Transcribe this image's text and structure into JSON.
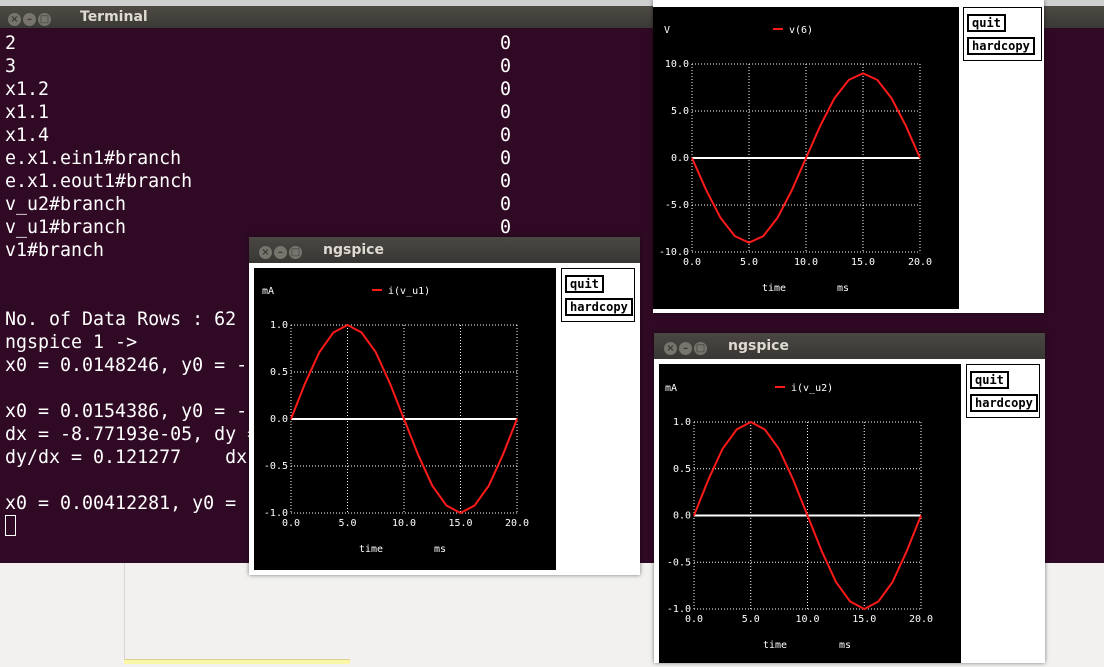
{
  "terminal": {
    "title": "Terminal",
    "rows": [
      {
        "name": "2",
        "value": "0"
      },
      {
        "name": "3",
        "value": "0"
      },
      {
        "name": "x1.2",
        "value": "0"
      },
      {
        "name": "x1.1",
        "value": "0"
      },
      {
        "name": "x1.4",
        "value": "0"
      },
      {
        "name": "e.x1.ein1#branch",
        "value": "0"
      },
      {
        "name": "e.x1.eout1#branch",
        "value": "0"
      },
      {
        "name": "v_u2#branch",
        "value": "0"
      },
      {
        "name": "v_u1#branch",
        "value": "0"
      },
      {
        "name": "v1#branch",
        "value": ""
      }
    ],
    "lines": [
      "",
      "",
      "No. of Data Rows : 62",
      "ngspice 1 ->",
      "x0 = 0.0148246, y0 = -",
      "",
      "x0 = 0.0154386, y0 = -",
      "dx = -8.77193e-05, dy =",
      "dy/dx = 0.121277    dx",
      "",
      "x0 = 0.00412281, y0 ="
    ]
  },
  "colors": {
    "terminal_bg": "#300a24",
    "trace": "#ff1a1a",
    "plot_bg": "#000000"
  },
  "windows": [
    {
      "id": "v6",
      "title": "",
      "unit": "V",
      "legend": "v(6)",
      "buttons": {
        "quit": "quit",
        "hardcopy": "hardcopy"
      },
      "xlabel": "time",
      "xunit": "ms",
      "chart_data": {
        "type": "line",
        "x": [
          0.0,
          1.25,
          2.5,
          3.75,
          5.0,
          6.25,
          7.5,
          8.75,
          10.0,
          11.25,
          12.5,
          13.75,
          15.0,
          16.25,
          17.5,
          18.75,
          20.0
        ],
        "series": [
          {
            "name": "v(6)",
            "values": [
              0.0,
              -3.44,
              -6.36,
              -8.31,
              -9.0,
              -8.31,
              -6.36,
              -3.44,
              0.0,
              3.44,
              6.36,
              8.31,
              9.0,
              8.31,
              6.36,
              3.44,
              0.0
            ]
          }
        ],
        "xticks": [
          "0.0",
          "5.0",
          "10.0",
          "15.0",
          "20.0"
        ],
        "yticks": [
          "10.0",
          "5.0",
          "0.0",
          "-5.0",
          "-10.0"
        ],
        "xlim": [
          0,
          20
        ],
        "ylim": [
          -10,
          10
        ],
        "xlabel": "time",
        "xunit": "ms",
        "ylabel": "V",
        "grid": true,
        "legend": "top"
      }
    },
    {
      "id": "vu1",
      "title": "ngspice",
      "unit": "mA",
      "legend": "i(v_u1)",
      "buttons": {
        "quit": "quit",
        "hardcopy": "hardcopy"
      },
      "xlabel": "time",
      "xunit": "ms",
      "chart_data": {
        "type": "line",
        "x": [
          0.0,
          1.25,
          2.5,
          3.75,
          5.0,
          6.25,
          7.5,
          8.75,
          10.0,
          11.25,
          12.5,
          13.75,
          15.0,
          16.25,
          17.5,
          18.75,
          20.0
        ],
        "series": [
          {
            "name": "i(v_u1)",
            "values": [
              0.0,
              0.38,
              0.71,
              0.92,
              1.0,
              0.92,
              0.71,
              0.38,
              0.0,
              -0.38,
              -0.71,
              -0.92,
              -1.0,
              -0.92,
              -0.71,
              -0.38,
              0.0
            ]
          }
        ],
        "xticks": [
          "0.0",
          "5.0",
          "10.0",
          "15.0",
          "20.0"
        ],
        "yticks": [
          "1.0",
          "0.5",
          "0.0",
          "-0.5",
          "-1.0"
        ],
        "xlim": [
          0,
          20
        ],
        "ylim": [
          -1,
          1
        ],
        "xlabel": "time",
        "xunit": "ms",
        "ylabel": "mA",
        "grid": true,
        "legend": "top"
      }
    },
    {
      "id": "vu2",
      "title": "ngspice",
      "unit": "mA",
      "legend": "i(v_u2)",
      "buttons": {
        "quit": "quit",
        "hardcopy": "hardcopy"
      },
      "xlabel": "time",
      "xunit": "ms",
      "chart_data": {
        "type": "line",
        "x": [
          0.0,
          1.25,
          2.5,
          3.75,
          5.0,
          6.25,
          7.5,
          8.75,
          10.0,
          11.25,
          12.5,
          13.75,
          15.0,
          16.25,
          17.5,
          18.75,
          20.0
        ],
        "series": [
          {
            "name": "i(v_u2)",
            "values": [
              0.0,
              0.38,
              0.71,
              0.92,
              1.0,
              0.92,
              0.71,
              0.38,
              0.0,
              -0.38,
              -0.71,
              -0.92,
              -1.0,
              -0.92,
              -0.71,
              -0.38,
              0.0
            ]
          }
        ],
        "xticks": [
          "0.0",
          "5.0",
          "10.0",
          "15.0",
          "20.0"
        ],
        "yticks": [
          "1.0",
          "0.5",
          "0.0",
          "-0.5",
          "-1.0"
        ],
        "xlim": [
          0,
          20
        ],
        "ylim": [
          -1,
          1
        ],
        "xlabel": "time",
        "xunit": "ms",
        "ylabel": "mA",
        "grid": true,
        "legend": "top"
      }
    }
  ]
}
